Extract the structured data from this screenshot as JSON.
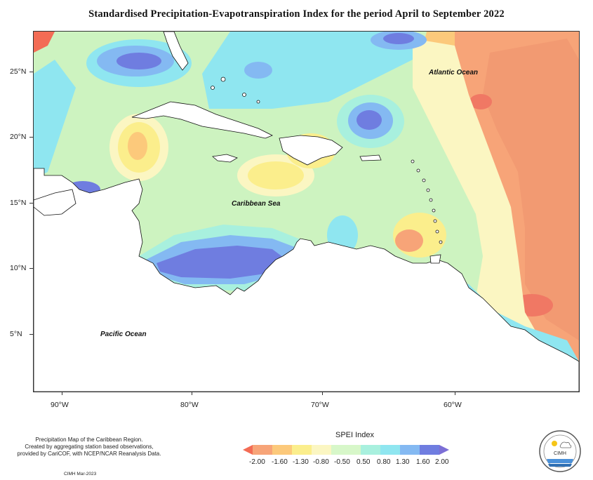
{
  "title": "Standardised Precipitation-Evapotranspiration Index for the period April to September 2022",
  "labels": {
    "atlantic": "Atlantic Ocean",
    "caribbean": "Caribbean Sea",
    "pacific": "Pacific Ocean"
  },
  "latitude_ticks": [
    "25°N",
    "20°N",
    "15°N",
    "10°N",
    "5°N"
  ],
  "longitude_ticks": [
    "90°W",
    "80°W",
    "70°W",
    "60°W"
  ],
  "footnote": {
    "line1": "Precipitation Map of the Caribbean Region.",
    "line2": "Created by aggregating station based observations,",
    "line3": "provided by CariCOF, with NCEP/NCAR Reanalysis Data."
  },
  "credit": "CIMH Mar-2023",
  "legend": {
    "title": "SPEI Index",
    "values": [
      "-2.00",
      "-1.60",
      "-1.30",
      "-0.80",
      "-0.50",
      "0.50",
      "0.80",
      "1.30",
      "1.60",
      "2.00"
    ],
    "colors": [
      "#f36c55",
      "#f7a478",
      "#fcc97b",
      "#fbee8c",
      "#fbf6c2",
      "#d7f7c9",
      "#a8f0de",
      "#8fe6f0",
      "#84b9f2",
      "#6f7de0",
      "#7c6fd6"
    ]
  },
  "logo_text": "CIMH"
}
